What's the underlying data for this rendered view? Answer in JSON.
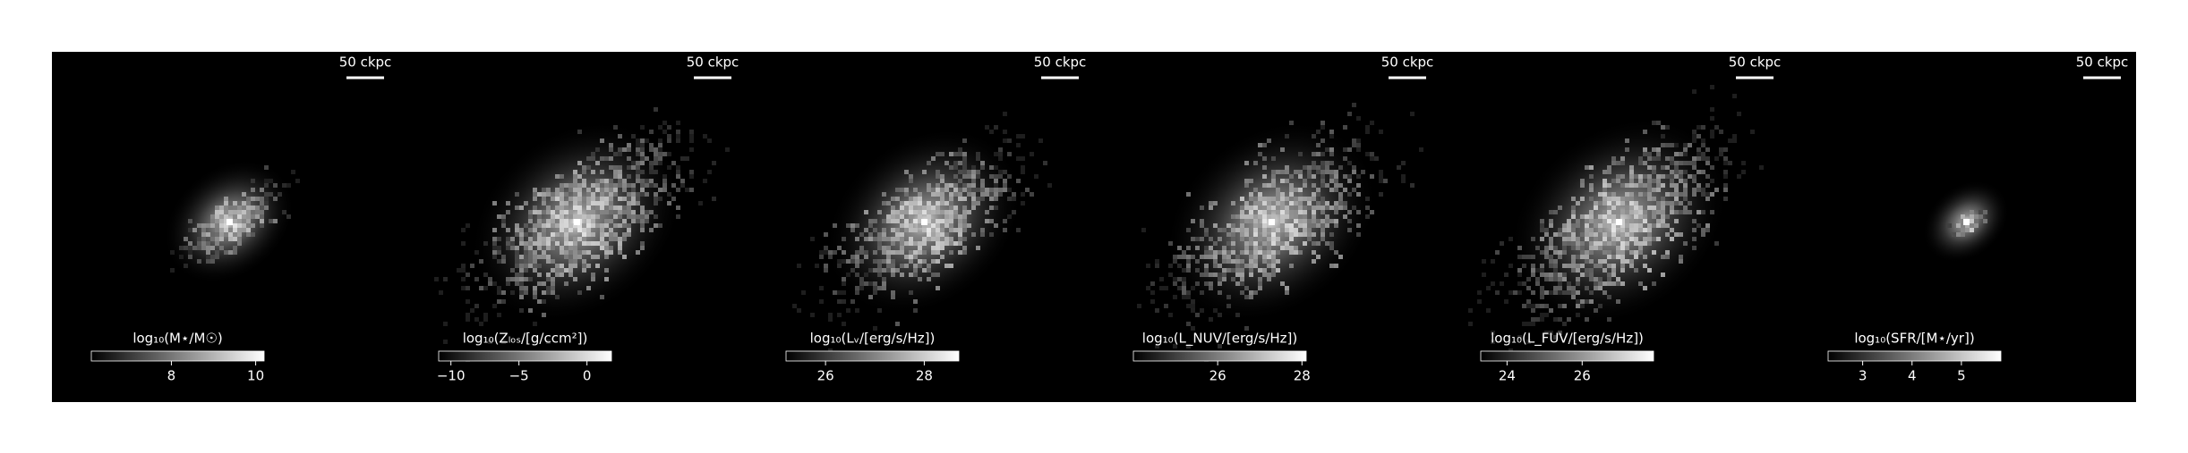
{
  "chart_data": [
    {
      "type": "image",
      "scale_bar": "50 ckpc",
      "colorbar_label": "log₁₀(M⋆/M☉)",
      "clim": [
        6.1,
        10.2
      ],
      "cticks": [
        8,
        10
      ]
    },
    {
      "type": "image",
      "scale_bar": "50 ckpc",
      "colorbar_label": "log₁₀(Zₗₒₛ/[g/ccm²])",
      "clim": [
        -10.9,
        1.8
      ],
      "cticks": [
        {
          "value": -10,
          "label": "−10"
        },
        {
          "value": -5,
          "label": "−5"
        },
        0
      ]
    },
    {
      "type": "image",
      "scale_bar": "50 ckpc",
      "colorbar_label": "log₁₀(Lᵥ/[erg/s/Hz])",
      "clim": [
        25.2,
        28.7
      ],
      "cticks": [
        26,
        28
      ]
    },
    {
      "type": "image",
      "scale_bar": "50 ckpc",
      "colorbar_label": "log₁₀(L_NUV/[erg/s/Hz])",
      "clim": [
        24.0,
        28.1
      ],
      "cticks": [
        26,
        28
      ]
    },
    {
      "type": "image",
      "scale_bar": "50 ckpc",
      "colorbar_label": "log₁₀(L_FUV/[erg/s/Hz])",
      "clim": [
        23.3,
        27.9
      ],
      "cticks": [
        24,
        26
      ]
    },
    {
      "type": "image",
      "scale_bar": "50 ckpc",
      "colorbar_label": "log₁₀(SFR/[M⋆/yr])",
      "clim": [
        2.3,
        5.8
      ],
      "cticks": [
        3,
        4,
        5
      ]
    }
  ]
}
